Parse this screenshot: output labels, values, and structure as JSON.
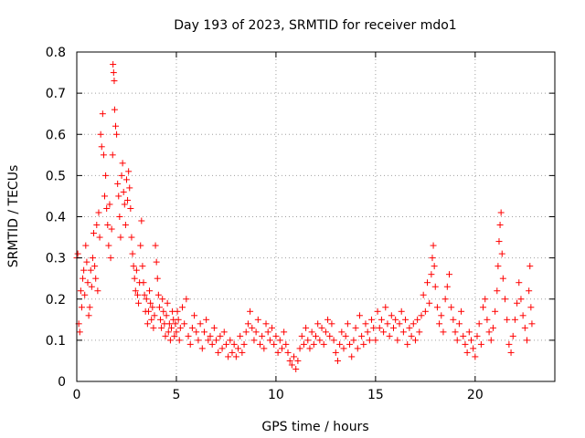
{
  "chart_data": {
    "type": "scatter",
    "title": "Day 193 of 2023, SRMTID for receiver mdo1",
    "xlabel": "GPS time / hours",
    "ylabel": "SRMTID / TECUs",
    "xlim": [
      0,
      24
    ],
    "ylim": [
      0,
      0.8
    ],
    "xticks": [
      0,
      5,
      10,
      15,
      20
    ],
    "xtick_labels": [
      "0",
      "5",
      "10",
      "15",
      "20"
    ],
    "yticks": [
      0,
      0.1,
      0.2,
      0.3,
      0.4,
      0.5,
      0.6,
      0.7,
      0.8
    ],
    "ytick_labels": [
      "0",
      "0.1",
      "0.2",
      "0.3",
      "0.4",
      "0.5",
      "0.6",
      "0.7",
      "0.8"
    ],
    "grid": true,
    "marker": "+",
    "marker_color": "#ff0000",
    "series": [
      {
        "name": "SRMTID",
        "points": [
          [
            0.0,
            0.3
          ],
          [
            0.05,
            0.31
          ],
          [
            0.1,
            0.14
          ],
          [
            0.15,
            0.12
          ],
          [
            0.2,
            0.22
          ],
          [
            0.25,
            0.18
          ],
          [
            0.3,
            0.25
          ],
          [
            0.35,
            0.27
          ],
          [
            0.4,
            0.21
          ],
          [
            0.45,
            0.33
          ],
          [
            0.5,
            0.29
          ],
          [
            0.55,
            0.24
          ],
          [
            0.6,
            0.16
          ],
          [
            0.65,
            0.18
          ],
          [
            0.7,
            0.27
          ],
          [
            0.75,
            0.23
          ],
          [
            0.8,
            0.3
          ],
          [
            0.85,
            0.36
          ],
          [
            0.9,
            0.28
          ],
          [
            0.95,
            0.25
          ],
          [
            1.0,
            0.38
          ],
          [
            1.05,
            0.22
          ],
          [
            1.1,
            0.41
          ],
          [
            1.15,
            0.35
          ],
          [
            1.2,
            0.6
          ],
          [
            1.25,
            0.57
          ],
          [
            1.3,
            0.65
          ],
          [
            1.35,
            0.55
          ],
          [
            1.4,
            0.45
          ],
          [
            1.45,
            0.5
          ],
          [
            1.5,
            0.42
          ],
          [
            1.55,
            0.38
          ],
          [
            1.6,
            0.33
          ],
          [
            1.65,
            0.43
          ],
          [
            1.7,
            0.3
          ],
          [
            1.75,
            0.37
          ],
          [
            1.8,
            0.55
          ],
          [
            1.82,
            0.77
          ],
          [
            1.85,
            0.75
          ],
          [
            1.88,
            0.73
          ],
          [
            1.9,
            0.66
          ],
          [
            1.95,
            0.62
          ],
          [
            2.0,
            0.6
          ],
          [
            2.05,
            0.48
          ],
          [
            2.1,
            0.45
          ],
          [
            2.15,
            0.4
          ],
          [
            2.2,
            0.35
          ],
          [
            2.25,
            0.5
          ],
          [
            2.3,
            0.53
          ],
          [
            2.35,
            0.46
          ],
          [
            2.4,
            0.43
          ],
          [
            2.45,
            0.38
          ],
          [
            2.5,
            0.49
          ],
          [
            2.55,
            0.44
          ],
          [
            2.6,
            0.51
          ],
          [
            2.65,
            0.47
          ],
          [
            2.7,
            0.42
          ],
          [
            2.75,
            0.35
          ],
          [
            2.8,
            0.31
          ],
          [
            2.85,
            0.28
          ],
          [
            2.9,
            0.25
          ],
          [
            2.95,
            0.22
          ],
          [
            3.0,
            0.27
          ],
          [
            3.05,
            0.21
          ],
          [
            3.1,
            0.19
          ],
          [
            3.15,
            0.24
          ],
          [
            3.2,
            0.33
          ],
          [
            3.25,
            0.39
          ],
          [
            3.3,
            0.28
          ],
          [
            3.35,
            0.24
          ],
          [
            3.4,
            0.21
          ],
          [
            3.45,
            0.17
          ],
          [
            3.5,
            0.2
          ],
          [
            3.55,
            0.14
          ],
          [
            3.6,
            0.17
          ],
          [
            3.65,
            0.22
          ],
          [
            3.7,
            0.19
          ],
          [
            3.75,
            0.15
          ],
          [
            3.8,
            0.18
          ],
          [
            3.85,
            0.13
          ],
          [
            3.9,
            0.16
          ],
          [
            3.95,
            0.33
          ],
          [
            4.0,
            0.29
          ],
          [
            4.05,
            0.25
          ],
          [
            4.1,
            0.21
          ],
          [
            4.15,
            0.18
          ],
          [
            4.2,
            0.15
          ],
          [
            4.25,
            0.13
          ],
          [
            4.3,
            0.2
          ],
          [
            4.35,
            0.17
          ],
          [
            4.4,
            0.14
          ],
          [
            4.45,
            0.11
          ],
          [
            4.5,
            0.16
          ],
          [
            4.55,
            0.19
          ],
          [
            4.6,
            0.12
          ],
          [
            4.65,
            0.14
          ],
          [
            4.7,
            0.1
          ],
          [
            4.75,
            0.13
          ],
          [
            4.8,
            0.17
          ],
          [
            4.85,
            0.15
          ],
          [
            4.9,
            0.11
          ],
          [
            4.95,
            0.14
          ],
          [
            5.0,
            0.12
          ],
          [
            5.05,
            0.17
          ],
          [
            5.1,
            0.15
          ],
          [
            5.15,
            0.1
          ],
          [
            5.2,
            0.13
          ],
          [
            5.3,
            0.18
          ],
          [
            5.4,
            0.14
          ],
          [
            5.5,
            0.2
          ],
          [
            5.6,
            0.11
          ],
          [
            5.7,
            0.09
          ],
          [
            5.8,
            0.13
          ],
          [
            5.9,
            0.16
          ],
          [
            6.0,
            0.12
          ],
          [
            6.1,
            0.1
          ],
          [
            6.2,
            0.14
          ],
          [
            6.3,
            0.08
          ],
          [
            6.4,
            0.12
          ],
          [
            6.5,
            0.15
          ],
          [
            6.6,
            0.1
          ],
          [
            6.7,
            0.11
          ],
          [
            6.8,
            0.09
          ],
          [
            6.9,
            0.13
          ],
          [
            7.0,
            0.1
          ],
          [
            7.1,
            0.07
          ],
          [
            7.2,
            0.11
          ],
          [
            7.3,
            0.08
          ],
          [
            7.4,
            0.12
          ],
          [
            7.5,
            0.09
          ],
          [
            7.6,
            0.06
          ],
          [
            7.7,
            0.1
          ],
          [
            7.8,
            0.07
          ],
          [
            7.9,
            0.09
          ],
          [
            8.0,
            0.06
          ],
          [
            8.1,
            0.08
          ],
          [
            8.2,
            0.11
          ],
          [
            8.3,
            0.07
          ],
          [
            8.4,
            0.09
          ],
          [
            8.5,
            0.12
          ],
          [
            8.6,
            0.14
          ],
          [
            8.7,
            0.17
          ],
          [
            8.8,
            0.13
          ],
          [
            8.9,
            0.1
          ],
          [
            9.0,
            0.12
          ],
          [
            9.1,
            0.15
          ],
          [
            9.2,
            0.09
          ],
          [
            9.3,
            0.11
          ],
          [
            9.4,
            0.08
          ],
          [
            9.5,
            0.14
          ],
          [
            9.6,
            0.12
          ],
          [
            9.7,
            0.1
          ],
          [
            9.8,
            0.13
          ],
          [
            9.9,
            0.09
          ],
          [
            10.0,
            0.11
          ],
          [
            10.1,
            0.07
          ],
          [
            10.2,
            0.1
          ],
          [
            10.3,
            0.08
          ],
          [
            10.4,
            0.12
          ],
          [
            10.5,
            0.09
          ],
          [
            10.6,
            0.07
          ],
          [
            10.7,
            0.05
          ],
          [
            10.8,
            0.04
          ],
          [
            10.9,
            0.06
          ],
          [
            11.0,
            0.03
          ],
          [
            11.1,
            0.05
          ],
          [
            11.2,
            0.08
          ],
          [
            11.3,
            0.11
          ],
          [
            11.4,
            0.09
          ],
          [
            11.5,
            0.13
          ],
          [
            11.6,
            0.1
          ],
          [
            11.7,
            0.08
          ],
          [
            11.8,
            0.12
          ],
          [
            11.9,
            0.09
          ],
          [
            12.0,
            0.11
          ],
          [
            12.1,
            0.14
          ],
          [
            12.2,
            0.1
          ],
          [
            12.3,
            0.13
          ],
          [
            12.4,
            0.09
          ],
          [
            12.5,
            0.12
          ],
          [
            12.6,
            0.15
          ],
          [
            12.7,
            0.11
          ],
          [
            12.8,
            0.14
          ],
          [
            12.9,
            0.1
          ],
          [
            13.0,
            0.07
          ],
          [
            13.1,
            0.05
          ],
          [
            13.2,
            0.09
          ],
          [
            13.3,
            0.12
          ],
          [
            13.4,
            0.08
          ],
          [
            13.5,
            0.11
          ],
          [
            13.6,
            0.14
          ],
          [
            13.7,
            0.09
          ],
          [
            13.8,
            0.06
          ],
          [
            13.9,
            0.1
          ],
          [
            14.0,
            0.13
          ],
          [
            14.1,
            0.08
          ],
          [
            14.2,
            0.16
          ],
          [
            14.3,
            0.11
          ],
          [
            14.4,
            0.09
          ],
          [
            14.5,
            0.14
          ],
          [
            14.6,
            0.12
          ],
          [
            14.7,
            0.1
          ],
          [
            14.8,
            0.15
          ],
          [
            14.9,
            0.13
          ],
          [
            15.0,
            0.1
          ],
          [
            15.1,
            0.17
          ],
          [
            15.2,
            0.13
          ],
          [
            15.3,
            0.15
          ],
          [
            15.4,
            0.12
          ],
          [
            15.5,
            0.18
          ],
          [
            15.6,
            0.14
          ],
          [
            15.7,
            0.11
          ],
          [
            15.8,
            0.16
          ],
          [
            15.9,
            0.13
          ],
          [
            16.0,
            0.15
          ],
          [
            16.1,
            0.1
          ],
          [
            16.2,
            0.14
          ],
          [
            16.3,
            0.17
          ],
          [
            16.4,
            0.12
          ],
          [
            16.5,
            0.15
          ],
          [
            16.6,
            0.09
          ],
          [
            16.7,
            0.13
          ],
          [
            16.8,
            0.11
          ],
          [
            16.9,
            0.14
          ],
          [
            17.0,
            0.1
          ],
          [
            17.1,
            0.15
          ],
          [
            17.2,
            0.12
          ],
          [
            17.3,
            0.16
          ],
          [
            17.4,
            0.21
          ],
          [
            17.5,
            0.17
          ],
          [
            17.6,
            0.24
          ],
          [
            17.7,
            0.19
          ],
          [
            17.8,
            0.26
          ],
          [
            17.85,
            0.3
          ],
          [
            17.9,
            0.33
          ],
          [
            17.95,
            0.28
          ],
          [
            18.0,
            0.23
          ],
          [
            18.1,
            0.18
          ],
          [
            18.2,
            0.14
          ],
          [
            18.3,
            0.16
          ],
          [
            18.4,
            0.12
          ],
          [
            18.5,
            0.2
          ],
          [
            18.6,
            0.23
          ],
          [
            18.7,
            0.26
          ],
          [
            18.8,
            0.18
          ],
          [
            18.9,
            0.15
          ],
          [
            19.0,
            0.12
          ],
          [
            19.1,
            0.1
          ],
          [
            19.2,
            0.14
          ],
          [
            19.3,
            0.17
          ],
          [
            19.4,
            0.11
          ],
          [
            19.5,
            0.09
          ],
          [
            19.6,
            0.07
          ],
          [
            19.7,
            0.12
          ],
          [
            19.8,
            0.1
          ],
          [
            19.9,
            0.08
          ],
          [
            20.0,
            0.06
          ],
          [
            20.1,
            0.11
          ],
          [
            20.2,
            0.14
          ],
          [
            20.3,
            0.09
          ],
          [
            20.4,
            0.18
          ],
          [
            20.5,
            0.2
          ],
          [
            20.6,
            0.15
          ],
          [
            20.7,
            0.12
          ],
          [
            20.8,
            0.1
          ],
          [
            20.9,
            0.13
          ],
          [
            21.0,
            0.17
          ],
          [
            21.1,
            0.22
          ],
          [
            21.15,
            0.28
          ],
          [
            21.2,
            0.34
          ],
          [
            21.25,
            0.38
          ],
          [
            21.3,
            0.41
          ],
          [
            21.35,
            0.31
          ],
          [
            21.4,
            0.25
          ],
          [
            21.5,
            0.2
          ],
          [
            21.6,
            0.15
          ],
          [
            21.7,
            0.09
          ],
          [
            21.8,
            0.07
          ],
          [
            21.9,
            0.11
          ],
          [
            22.0,
            0.15
          ],
          [
            22.1,
            0.19
          ],
          [
            22.2,
            0.24
          ],
          [
            22.3,
            0.2
          ],
          [
            22.4,
            0.16
          ],
          [
            22.5,
            0.13
          ],
          [
            22.6,
            0.1
          ],
          [
            22.7,
            0.22
          ],
          [
            22.75,
            0.28
          ],
          [
            22.8,
            0.18
          ],
          [
            22.85,
            0.14
          ]
        ]
      }
    ]
  }
}
